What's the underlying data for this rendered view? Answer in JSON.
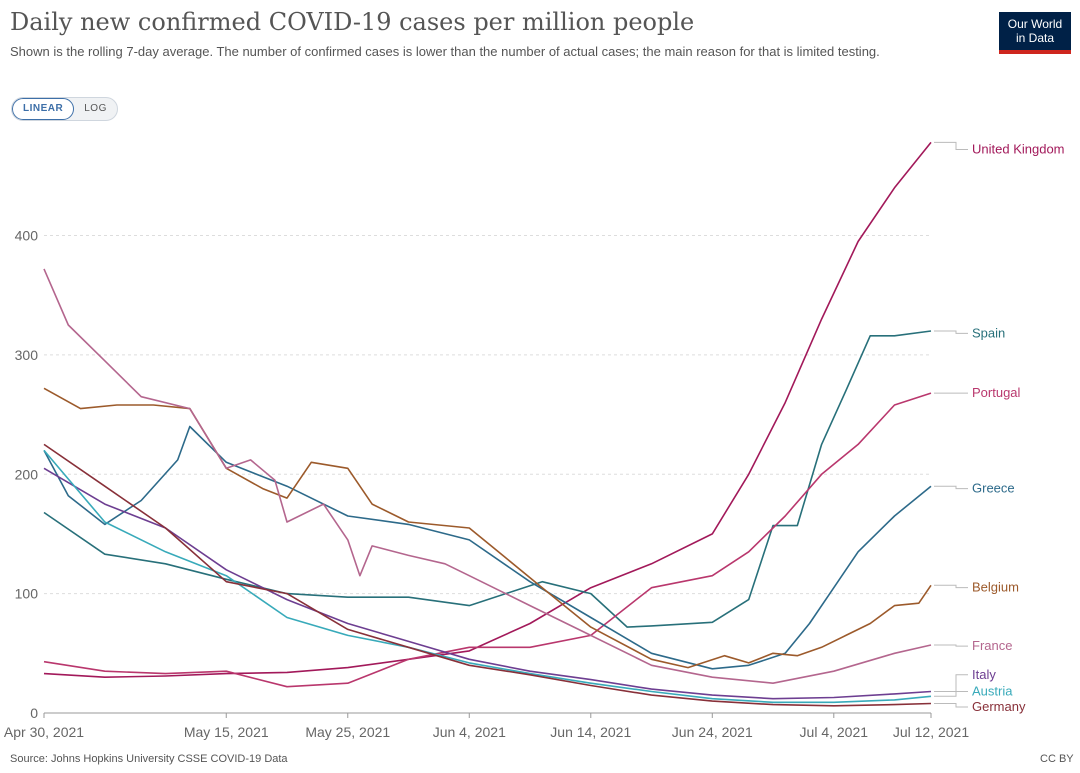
{
  "title": "Daily new confirmed COVID-19 cases per million people",
  "subtitle": "Shown is the rolling 7-day average. The number of confirmed cases is lower than the number of actual cases; the main reason for that is limited testing.",
  "logo": {
    "line1": "Our World",
    "line2": "in Data"
  },
  "scale_toggle": {
    "linear": "LINEAR",
    "log": "LOG",
    "selected": "LINEAR"
  },
  "source": "Source: Johns Hopkins University CSSE COVID-19 Data",
  "license": "CC BY",
  "chart_data": {
    "type": "line",
    "x_ticks": [
      0,
      15,
      25,
      35,
      45,
      55,
      65,
      73
    ],
    "x_tick_labels": [
      "Apr 30, 2021",
      "May 15, 2021",
      "May 25, 2021",
      "Jun 4, 2021",
      "Jun 14, 2021",
      "Jun 24, 2021",
      "Jul 4, 2021",
      "Jul 12, 2021"
    ],
    "y_ticks": [
      0,
      100,
      200,
      300,
      400
    ],
    "ylim": [
      0,
      480
    ],
    "xlim": [
      0,
      73
    ],
    "grid": true,
    "series": [
      {
        "name": "United Kingdom",
        "color": "#a2195a",
        "x": [
          0,
          5,
          10,
          15,
          20,
          25,
          30,
          35,
          40,
          45,
          50,
          55,
          58,
          61,
          64,
          67,
          70,
          73
        ],
        "y": [
          33,
          30,
          31,
          33,
          34,
          38,
          45,
          52,
          75,
          105,
          125,
          150,
          200,
          260,
          330,
          395,
          440,
          478
        ]
      },
      {
        "name": "Spain",
        "color": "#28707a",
        "x": [
          0,
          5,
          10,
          15,
          20,
          25,
          30,
          35,
          41,
          45,
          48,
          50,
          55,
          58,
          60,
          62,
          64,
          66,
          68,
          70,
          73
        ],
        "y": [
          168,
          133,
          125,
          112,
          100,
          97,
          97,
          90,
          110,
          100,
          72,
          73,
          76,
          95,
          157,
          157,
          225,
          270,
          316,
          316,
          320
        ]
      },
      {
        "name": "Portugal",
        "color": "#b9376d",
        "x": [
          0,
          5,
          10,
          15,
          20,
          25,
          30,
          35,
          40,
          45,
          50,
          55,
          58,
          61,
          64,
          67,
          70,
          73
        ],
        "y": [
          43,
          35,
          33,
          35,
          22,
          25,
          45,
          55,
          55,
          65,
          105,
          115,
          135,
          165,
          200,
          225,
          258,
          268
        ]
      },
      {
        "name": "Greece",
        "color": "#2d6a8a",
        "x": [
          0,
          2,
          5,
          8,
          11,
          12,
          15,
          20,
          25,
          30,
          35,
          40,
          45,
          50,
          55,
          58,
          61,
          63,
          65,
          67,
          70,
          73
        ],
        "y": [
          220,
          182,
          158,
          178,
          212,
          240,
          210,
          190,
          165,
          158,
          145,
          110,
          80,
          50,
          37,
          40,
          50,
          75,
          105,
          135,
          165,
          190
        ]
      },
      {
        "name": "Belgium",
        "color": "#9c5a2b",
        "x": [
          0,
          3,
          6,
          9,
          12,
          15,
          18,
          20,
          22,
          25,
          27,
          30,
          35,
          38,
          41,
          45,
          50,
          53,
          56,
          58,
          60,
          62,
          64,
          66,
          68,
          70,
          72,
          73
        ],
        "y": [
          272,
          255,
          258,
          258,
          255,
          205,
          188,
          180,
          210,
          205,
          175,
          160,
          155,
          130,
          105,
          72,
          45,
          38,
          48,
          42,
          50,
          48,
          55,
          65,
          75,
          90,
          92,
          107
        ]
      },
      {
        "name": "France",
        "color": "#b4668e",
        "x": [
          0,
          2,
          5,
          8,
          12,
          15,
          17,
          19,
          20,
          23,
          25,
          26,
          27,
          30,
          33,
          35,
          40,
          45,
          50,
          55,
          60,
          65,
          70,
          73
        ],
        "y": [
          372,
          325,
          295,
          265,
          255,
          205,
          212,
          195,
          160,
          175,
          145,
          115,
          140,
          132,
          125,
          115,
          90,
          65,
          40,
          30,
          25,
          35,
          50,
          57
        ]
      },
      {
        "name": "Italy",
        "color": "#6d3e91",
        "x": [
          0,
          5,
          10,
          15,
          20,
          25,
          30,
          35,
          40,
          45,
          50,
          55,
          60,
          65,
          70,
          73
        ],
        "y": [
          205,
          175,
          155,
          120,
          95,
          75,
          60,
          45,
          35,
          28,
          20,
          15,
          12,
          13,
          16,
          18
        ]
      },
      {
        "name": "Austria",
        "color": "#38aaba",
        "x": [
          0,
          5,
          10,
          15,
          20,
          25,
          30,
          35,
          40,
          45,
          50,
          55,
          60,
          65,
          70,
          73
        ],
        "y": [
          220,
          160,
          135,
          115,
          80,
          65,
          55,
          42,
          33,
          25,
          18,
          12,
          9,
          9,
          11,
          14
        ]
      },
      {
        "name": "Germany",
        "color": "#883039",
        "x": [
          0,
          5,
          10,
          15,
          20,
          25,
          30,
          35,
          40,
          45,
          50,
          55,
          60,
          65,
          70,
          73
        ],
        "y": [
          225,
          190,
          155,
          110,
          100,
          70,
          55,
          40,
          32,
          23,
          15,
          10,
          7,
          6,
          7,
          8
        ]
      }
    ],
    "label_y": {
      "United Kingdom": 472,
      "Spain": 318,
      "Portugal": 268,
      "Greece": 188,
      "Belgium": 105,
      "France": 56,
      "Italy": 32,
      "Austria": 18,
      "Germany": 5
    }
  }
}
